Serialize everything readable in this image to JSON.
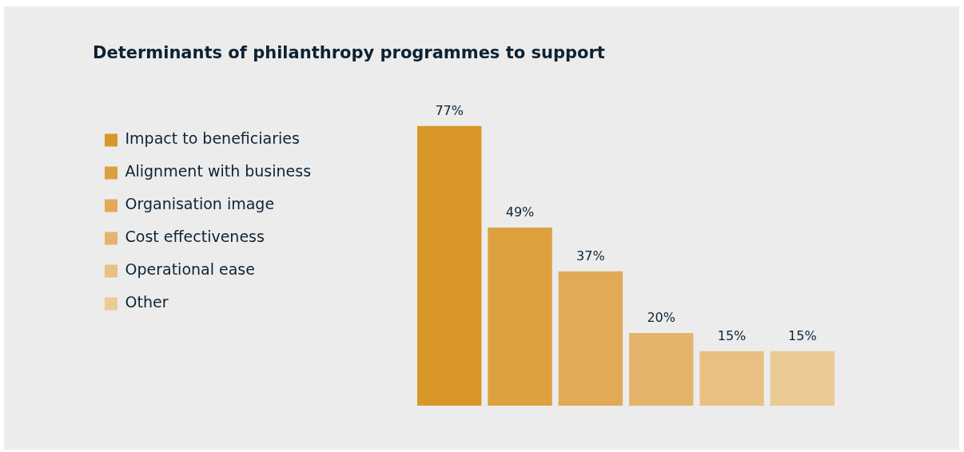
{
  "chart_data": {
    "type": "bar",
    "title": "Determinants of philanthropy programmes to support",
    "categories": [
      null
    ],
    "series": [
      {
        "name": "Impact to beneficiaries",
        "color": "#d9972a",
        "values": [
          77
        ],
        "value_labels": [
          "77%"
        ]
      },
      {
        "name": "Alignment with business",
        "color": "#dca03e",
        "values": [
          49
        ],
        "value_labels": [
          "49%"
        ]
      },
      {
        "name": "Organisation image",
        "color": "#e1aa56",
        "values": [
          37
        ],
        "value_labels": [
          "37%"
        ]
      },
      {
        "name": "Cost effectiveness",
        "color": "#e4b46b",
        "values": [
          20
        ],
        "value_labels": [
          "20%"
        ]
      },
      {
        "name": "Operational ease",
        "color": "#e8c182",
        "values": [
          15
        ],
        "value_labels": [
          "15%"
        ]
      },
      {
        "name": "Other",
        "color": "#ebca96",
        "values": [
          15
        ],
        "value_labels": [
          "15%"
        ]
      }
    ],
    "legend": "left"
  }
}
